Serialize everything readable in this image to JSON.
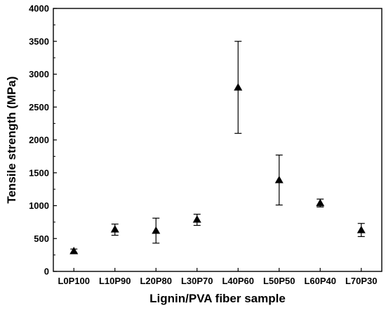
{
  "chart_data": {
    "type": "scatter",
    "xlabel": "Lignin/PVA fiber sample",
    "ylabel": "Tensile strength (MPa)",
    "ylim": [
      0,
      4000
    ],
    "yticks": [
      0,
      500,
      1000,
      1500,
      2000,
      2500,
      3000,
      3500,
      4000
    ],
    "categories": [
      "L0P100",
      "L10P90",
      "L20P80",
      "L30P70",
      "L40P60",
      "L50P50",
      "L60P40",
      "L70P30"
    ],
    "series": [
      {
        "marker": "triangle-up",
        "color": "#000000",
        "values": [
          310,
          640,
          620,
          790,
          2800,
          1390,
          1040,
          630
        ],
        "error_low": [
          280,
          550,
          430,
          700,
          2100,
          1010,
          980,
          530
        ],
        "error_high": [
          340,
          720,
          810,
          870,
          3500,
          1770,
          1100,
          730
        ]
      }
    ],
    "grid": false,
    "legend": "none"
  }
}
